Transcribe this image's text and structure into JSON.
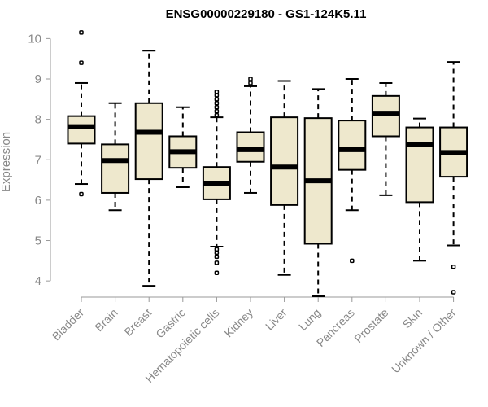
{
  "chart_data": {
    "type": "boxplot",
    "title": "ENSG00000229180 - GS1-124K5.11",
    "xlabel": "",
    "ylabel": "Expression",
    "ylim": [
      3.6,
      10.35
    ],
    "yticks": [
      4,
      5,
      6,
      7,
      8,
      9,
      10
    ],
    "box_fill": "#EEE8CD",
    "categories": [
      "Bladder",
      "Brain",
      "Breast",
      "Gastric",
      "Hematopoietic cells",
      "Kidney",
      "Liver",
      "Lung",
      "Pancreas",
      "Prostate",
      "Skin",
      "Unknown / Other"
    ],
    "boxes": [
      {
        "category": "Bladder",
        "whisker_low": 6.4,
        "q1": 7.4,
        "median": 7.82,
        "q3": 8.08,
        "whisker_high": 8.9,
        "outliers": [
          6.15,
          9.4,
          10.15
        ]
      },
      {
        "category": "Brain",
        "whisker_low": 5.75,
        "q1": 6.18,
        "median": 6.98,
        "q3": 7.38,
        "whisker_high": 8.4,
        "outliers": []
      },
      {
        "category": "Breast",
        "whisker_low": 3.88,
        "q1": 6.52,
        "median": 7.68,
        "q3": 8.4,
        "whisker_high": 9.7,
        "outliers": []
      },
      {
        "category": "Gastric",
        "whisker_low": 6.32,
        "q1": 6.8,
        "median": 7.2,
        "q3": 7.58,
        "whisker_high": 8.3,
        "outliers": []
      },
      {
        "category": "Hematopoietic cells",
        "whisker_low": 4.85,
        "q1": 6.02,
        "median": 6.42,
        "q3": 6.82,
        "whisker_high": 8.05,
        "outliers": [
          4.2,
          4.45,
          4.6,
          4.7,
          4.78,
          8.1,
          8.2,
          8.3,
          8.4,
          8.5,
          8.6,
          8.68
        ]
      },
      {
        "category": "Kidney",
        "whisker_low": 6.18,
        "q1": 6.95,
        "median": 7.25,
        "q3": 7.68,
        "whisker_high": 8.82,
        "outliers": [
          8.9,
          9.0
        ]
      },
      {
        "category": "Liver",
        "whisker_low": 4.15,
        "q1": 5.88,
        "median": 6.82,
        "q3": 8.05,
        "whisker_high": 8.95,
        "outliers": []
      },
      {
        "category": "Lung",
        "whisker_low": 3.62,
        "q1": 4.92,
        "median": 6.48,
        "q3": 8.03,
        "whisker_high": 8.75,
        "outliers": []
      },
      {
        "category": "Pancreas",
        "whisker_low": 5.75,
        "q1": 6.75,
        "median": 7.25,
        "q3": 7.97,
        "whisker_high": 9.0,
        "outliers": [
          4.5
        ]
      },
      {
        "category": "Prostate",
        "whisker_low": 6.12,
        "q1": 7.58,
        "median": 8.15,
        "q3": 8.58,
        "whisker_high": 8.9,
        "outliers": []
      },
      {
        "category": "Skin",
        "whisker_low": 4.5,
        "q1": 5.95,
        "median": 7.38,
        "q3": 7.8,
        "whisker_high": 8.02,
        "outliers": []
      },
      {
        "category": "Unknown / Other",
        "whisker_low": 4.88,
        "q1": 6.58,
        "median": 7.18,
        "q3": 7.8,
        "whisker_high": 9.42,
        "outliers": [
          3.72,
          4.35
        ]
      }
    ]
  }
}
